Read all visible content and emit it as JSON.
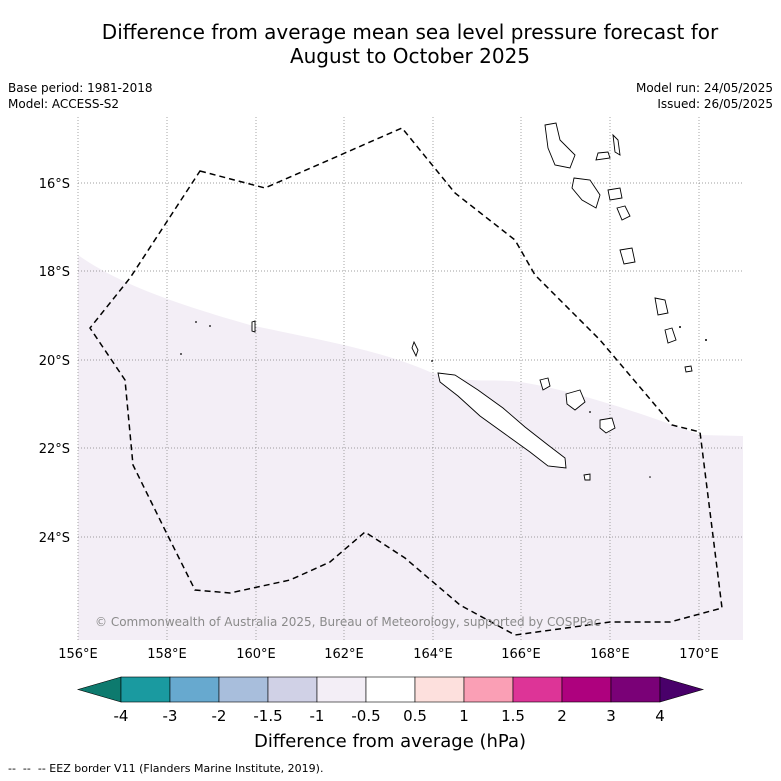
{
  "title": {
    "line1": "Difference from average mean sea level pressure forecast for",
    "line2": "August to October 2025"
  },
  "meta": {
    "base_period": "Base period: 1981-2018",
    "model": "Model: ACCESS-S2",
    "model_run": "Model run: 24/05/2025",
    "issued": "Issued: 26/05/2025"
  },
  "map": {
    "lon_ticks": [
      "156°E",
      "158°E",
      "160°E",
      "162°E",
      "164°E",
      "166°E",
      "168°E",
      "170°E"
    ],
    "lat_ticks": [
      "16°S",
      "18°S",
      "20°S",
      "22°S",
      "24°S"
    ],
    "extent": {
      "lon_min": 156,
      "lon_max": 171,
      "lat_min": -26.3,
      "lat_max": -14.5
    },
    "anomaly_region": {
      "category": "-0.5 to 0.5 band lower edge",
      "fill_color": "#f3eef6"
    },
    "copyright": "© Commonwealth of Australia 2025, Bureau of Meteorology, supported by COSPPac"
  },
  "colorbar": {
    "ticks": [
      "-4",
      "-3",
      "-2",
      "-1.5",
      "-1",
      "-0.5",
      "0.5",
      "1",
      "1.5",
      "2",
      "3",
      "4"
    ],
    "colors": [
      "#0d7a6e",
      "#1a9aa0",
      "#67a9cf",
      "#a8bedc",
      "#d0d1e6",
      "#f3eef6",
      "#ffffff",
      "#fde0dd",
      "#fa9fb5",
      "#dd3497",
      "#ae017e",
      "#7a0177",
      "#49006a"
    ],
    "title": "Difference from average (hPa)"
  },
  "legend": {
    "eez": "-- EEZ border V11 (Flanders Marine Institute, 2019)."
  }
}
